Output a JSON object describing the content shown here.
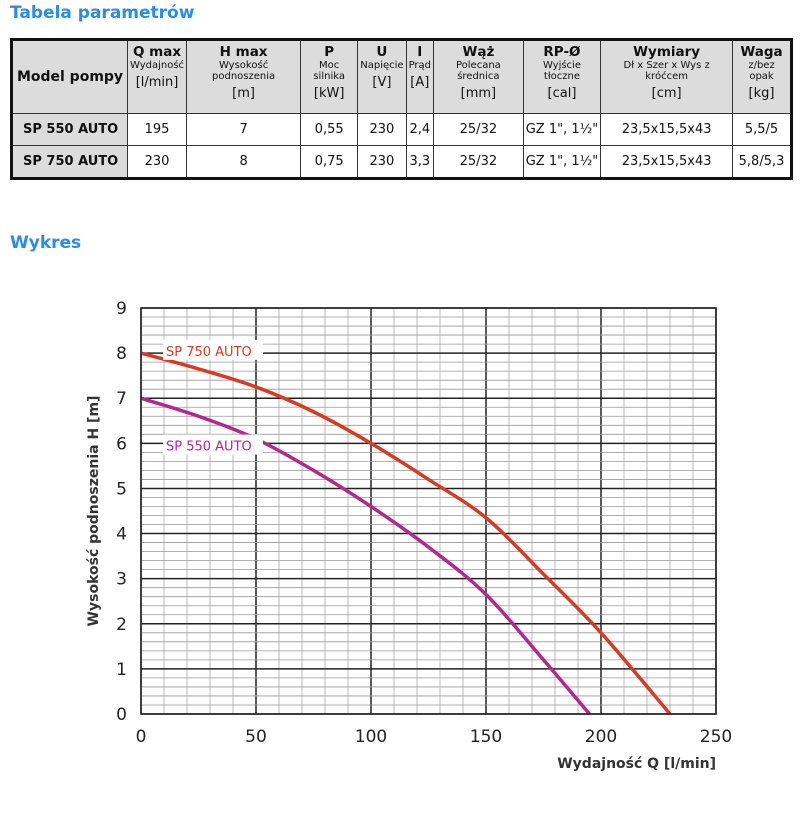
{
  "table_heading": "Tabela parametrów",
  "chart_heading": "Wykres",
  "table": {
    "model_header": "Model pompy",
    "columns": [
      {
        "title": "Q max",
        "sub": "Wydajność",
        "unit": "[l/min]"
      },
      {
        "title": "H max",
        "sub": "Wysokość podnoszenia",
        "unit": "[m]"
      },
      {
        "title": "P",
        "sub": "Moc silnika",
        "unit": "[kW]"
      },
      {
        "title": "U",
        "sub": "Napięcie",
        "unit": "[V]"
      },
      {
        "title": "I",
        "sub": "Prąd",
        "unit": "[A]"
      },
      {
        "title": "Wąż",
        "sub": "Polecana średnica",
        "unit": "[mm]"
      },
      {
        "title": "RP-Ø",
        "sub": "Wyjście tłoczne",
        "unit": "[cal]"
      },
      {
        "title": "Wymiary",
        "sub": "Dł x Szer x Wys z króćcem",
        "unit": "[cm]"
      },
      {
        "title": "Waga",
        "sub": "z/bez opak",
        "unit": "[kg]"
      }
    ],
    "rows": [
      {
        "model": "SP 550 AUTO",
        "cells": [
          "195",
          "7",
          "0,55",
          "230",
          "2,4",
          "25/32",
          "GZ 1\", 1½\"",
          "23,5x15,5x43",
          "5,5/5"
        ]
      },
      {
        "model": "SP 750 AUTO",
        "cells": [
          "230",
          "8",
          "0,75",
          "230",
          "3,3",
          "25/32",
          "GZ 1\", 1½\"",
          "23,5x15,5x43",
          "5,8/5,3"
        ]
      }
    ]
  },
  "chart_data": {
    "type": "line",
    "xlabel": "Wydajność Q [l/min]",
    "ylabel": "Wysokość podnoszenia H [m]",
    "xlim": [
      0,
      250
    ],
    "ylim": [
      0,
      9
    ],
    "xticks": [
      "0",
      "50",
      "100",
      "150",
      "200",
      "250"
    ],
    "yticks": [
      "0",
      "1",
      "2",
      "3",
      "4",
      "5",
      "6",
      "7",
      "8",
      "9"
    ],
    "grid": true,
    "series": [
      {
        "name": "SP 750 AUTO",
        "color": "#d63b24",
        "x": [
          0,
          25,
          50,
          75,
          100,
          125,
          150,
          175,
          200,
          230
        ],
        "y": [
          8,
          7.65,
          7.25,
          6.7,
          6.0,
          5.2,
          4.35,
          3.1,
          1.8,
          0
        ]
      },
      {
        "name": "SP 550 AUTO",
        "color": "#b3288f",
        "x": [
          0,
          25,
          50,
          75,
          100,
          125,
          150,
          175,
          195
        ],
        "y": [
          7,
          6.6,
          6.1,
          5.4,
          4.6,
          3.7,
          2.65,
          1.2,
          0
        ]
      }
    ]
  }
}
